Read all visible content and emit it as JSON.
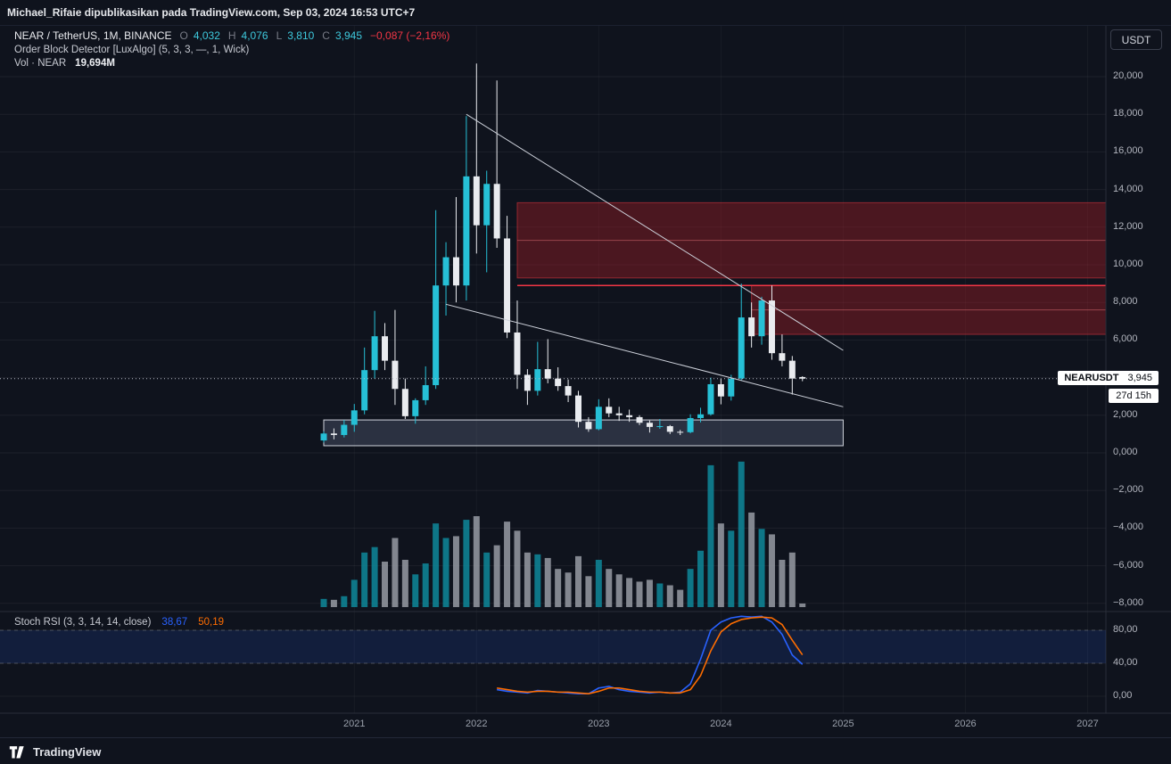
{
  "header_bar": {
    "publish_text": "Michael_Rifaie dipublikasikan pada TradingView.com, Sep 03, 2024 16:53 UTC+7"
  },
  "legend": {
    "symbol_line": {
      "title": "NEAR / TetherUS, 1M, BINANCE",
      "o_label": "O",
      "o": "4,032",
      "h_label": "H",
      "h": "4,076",
      "l_label": "L",
      "l": "3,810",
      "c_label": "C",
      "c": "3,945",
      "change": "−0,087 (−2,16%)"
    },
    "indicator_line": "Order Block Detector [LuxAlgo] (5, 3, 3, —, 1, Wick)",
    "volume_line": {
      "label": "Vol · NEAR",
      "value": "19,694M"
    }
  },
  "stoch_legend": {
    "title": "Stoch RSI (3, 3, 14, 14, close)",
    "k": "38,67",
    "d": "50,19"
  },
  "price_scale": {
    "currency_button": "USDT"
  },
  "price_tag": {
    "symbol": "NEARUSDT",
    "price": "3,945",
    "countdown": "27d 15h"
  },
  "time_axis": {
    "years": [
      "2021",
      "2022",
      "2023",
      "2024",
      "2025",
      "2026",
      "2027"
    ]
  },
  "footer": {
    "brand": "TradingView"
  },
  "colors": {
    "bg": "#0f131d",
    "up": "#26c0d6",
    "down": "#e9ebef",
    "vol_up": "#0e8294",
    "vol_down": "#8f939c",
    "accent_red": "#f23645",
    "zone_fill": "rgba(160,28,38,0.42)",
    "zone_edge": "rgba(200,50,60,0.65)",
    "zone_mid": "rgba(247,124,128,0.45)",
    "box_fill": "rgba(108,120,148,0.30)",
    "box_edge": "#cfd3dc",
    "trendline": "#cdd1da",
    "k_line": "#2962ff",
    "d_line": "#ff6d00",
    "stoch_band": "rgba(41,98,255,0.14)"
  },
  "chart_data": [
    {
      "type": "candlestick",
      "title": "NEAR / TetherUS, 1M, BINANCE",
      "timeframe": "1M",
      "exchange": "BINANCE",
      "quote": "USDT",
      "last_price": 3.945,
      "ylim": [
        -8,
        21
      ],
      "yticks": [
        20,
        18,
        16,
        14,
        12,
        10,
        8,
        6,
        4,
        2,
        0,
        -2,
        -4,
        -6,
        -8
      ],
      "ytick_labels": [
        "20,000",
        "18,000",
        "16,000",
        "14,000",
        "12,000",
        "10,000",
        "8,000",
        "6,000",
        "4,000",
        "2,000",
        "0,000",
        "−2,000",
        "−4,000",
        "−6,000",
        "−8,000"
      ],
      "x": [
        "2020-10",
        "2020-11",
        "2020-12",
        "2021-01",
        "2021-02",
        "2021-03",
        "2021-04",
        "2021-05",
        "2021-06",
        "2021-07",
        "2021-08",
        "2021-09",
        "2021-10",
        "2021-11",
        "2021-12",
        "2022-01",
        "2022-02",
        "2022-03",
        "2022-04",
        "2022-05",
        "2022-06",
        "2022-07",
        "2022-08",
        "2022-09",
        "2022-10",
        "2022-11",
        "2022-12",
        "2023-01",
        "2023-02",
        "2023-03",
        "2023-04",
        "2023-05",
        "2023-06",
        "2023-07",
        "2023-08",
        "2023-09",
        "2023-10",
        "2023-11",
        "2023-12",
        "2024-01",
        "2024-02",
        "2024-03",
        "2024-04",
        "2024-05",
        "2024-06",
        "2024-07",
        "2024-08",
        "2024-09"
      ],
      "ohlc": [
        [
          0.66,
          1.15,
          0.55,
          1.03
        ],
        [
          1.03,
          1.3,
          0.72,
          0.95
        ],
        [
          0.95,
          1.75,
          0.82,
          1.49
        ],
        [
          1.49,
          2.6,
          1.12,
          2.26
        ],
        [
          2.26,
          5.6,
          2.05,
          4.4
        ],
        [
          4.4,
          7.55,
          3.95,
          6.2
        ],
        [
          6.2,
          6.9,
          4.4,
          4.9
        ],
        [
          4.9,
          7.6,
          2.55,
          3.4
        ],
        [
          3.4,
          3.95,
          1.8,
          1.95
        ],
        [
          1.95,
          2.9,
          1.55,
          2.8
        ],
        [
          2.8,
          4.6,
          2.55,
          3.6
        ],
        [
          3.6,
          12.9,
          3.4,
          8.9
        ],
        [
          8.9,
          11.2,
          7.3,
          10.4
        ],
        [
          10.4,
          13.6,
          8.0,
          8.9
        ],
        [
          8.9,
          17.9,
          8.1,
          14.7
        ],
        [
          14.7,
          20.7,
          10.6,
          12.1
        ],
        [
          12.1,
          15.0,
          9.6,
          14.3
        ],
        [
          14.3,
          19.8,
          10.9,
          11.4
        ],
        [
          11.4,
          12.6,
          6.1,
          6.4
        ],
        [
          6.4,
          8.1,
          3.4,
          4.15
        ],
        [
          4.15,
          4.45,
          2.55,
          3.3
        ],
        [
          3.3,
          5.9,
          3.05,
          4.45
        ],
        [
          4.45,
          6.05,
          3.7,
          3.95
        ],
        [
          3.95,
          4.55,
          3.3,
          3.55
        ],
        [
          3.55,
          3.9,
          2.7,
          3.05
        ],
        [
          3.05,
          3.3,
          1.35,
          1.65
        ],
        [
          1.65,
          1.9,
          1.12,
          1.26
        ],
        [
          1.26,
          2.85,
          1.2,
          2.45
        ],
        [
          2.45,
          2.9,
          1.9,
          2.1
        ],
        [
          2.1,
          2.45,
          1.7,
          2.0
        ],
        [
          2.0,
          2.3,
          1.65,
          1.9
        ],
        [
          1.9,
          2.0,
          1.48,
          1.6
        ],
        [
          1.6,
          1.72,
          1.08,
          1.38
        ],
        [
          1.38,
          1.8,
          1.28,
          1.42
        ],
        [
          1.42,
          1.48,
          1.0,
          1.12
        ],
        [
          1.12,
          1.22,
          0.95,
          1.1
        ],
        [
          1.1,
          2.05,
          1.04,
          1.85
        ],
        [
          1.85,
          2.4,
          1.62,
          2.05
        ],
        [
          2.05,
          4.0,
          1.98,
          3.65
        ],
        [
          3.65,
          3.95,
          2.58,
          3.0
        ],
        [
          3.0,
          4.15,
          2.78,
          3.95
        ],
        [
          3.95,
          9.0,
          3.85,
          7.2
        ],
        [
          7.2,
          8.0,
          5.6,
          6.2
        ],
        [
          6.2,
          8.3,
          5.75,
          8.1
        ],
        [
          8.1,
          8.9,
          4.95,
          5.3
        ],
        [
          5.3,
          6.3,
          4.6,
          4.9
        ],
        [
          4.9,
          5.15,
          3.1,
          3.95
        ],
        [
          4.032,
          4.076,
          3.81,
          3.945
        ]
      ],
      "annotations": {
        "order_blocks": [
          {
            "from_x": "2022-05",
            "price_top": 13.3,
            "price_bottom": 9.3,
            "mid": 11.3
          },
          {
            "from_x": "2024-04",
            "price_top": 8.9,
            "price_bottom": 6.3,
            "mid": 7.6
          }
        ],
        "red_line": {
          "price": 8.9,
          "from_x": "2022-05"
        },
        "support_box": {
          "from_x": "2020-10",
          "to_x": "2025-01",
          "price_top": 1.75,
          "price_bottom": 0.38
        },
        "trendlines": [
          {
            "x1": "2021-12",
            "p1": 18.0,
            "x2": "2025-01",
            "p2": 5.45
          },
          {
            "x1": "2021-10",
            "p1": 7.9,
            "x2": "2025-01",
            "p2": 2.45
          }
        ]
      }
    },
    {
      "type": "bar",
      "name": "Vol · NEAR",
      "unit": "M",
      "current_label": "19,694M",
      "values": [
        45,
        40,
        60,
        150,
        300,
        330,
        250,
        380,
        260,
        180,
        240,
        460,
        380,
        390,
        480,
        500,
        300,
        340,
        470,
        420,
        300,
        290,
        270,
        210,
        190,
        280,
        170,
        260,
        210,
        180,
        160,
        140,
        150,
        130,
        120,
        95,
        210,
        310,
        780,
        460,
        420,
        800,
        520,
        430,
        400,
        260,
        300,
        19.7
      ]
    },
    {
      "type": "line",
      "name": "Stoch RSI (3, 3, 14, 14, close)",
      "x_start_index": 17,
      "ylim": [
        0,
        100
      ],
      "yticks": [
        80,
        40,
        0
      ],
      "ytick_labels": [
        "80,00",
        "40,00",
        "0,00"
      ],
      "bands": {
        "upper": 80,
        "lower": 40
      },
      "series": [
        {
          "name": "K",
          "color_key": "k_line",
          "values": [
            8,
            6,
            5,
            4,
            7,
            6,
            5,
            4,
            3,
            3,
            10,
            12,
            8,
            6,
            5,
            4,
            5,
            4,
            5,
            15,
            45,
            80,
            90,
            95,
            97,
            96,
            97,
            90,
            75,
            50,
            38.67
          ]
        },
        {
          "name": "D",
          "color_key": "d_line",
          "values": [
            10,
            8,
            6,
            5,
            6,
            6,
            5,
            5,
            4,
            3,
            6,
            10,
            10,
            8,
            6,
            5,
            5,
            4,
            4,
            8,
            25,
            55,
            78,
            88,
            93,
            95,
            96,
            95,
            87,
            68,
            50.19
          ]
        }
      ]
    }
  ]
}
